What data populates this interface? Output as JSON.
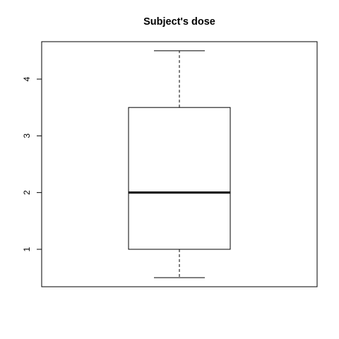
{
  "chart_data": {
    "type": "boxplot",
    "title": "Subject's dose",
    "xlabel": "",
    "ylabel": "",
    "ylim": [
      0.34,
      4.66
    ],
    "y_ticks": [
      1,
      2,
      3,
      4
    ],
    "boxes": [
      {
        "min": 0.5,
        "q1": 1.0,
        "median": 2.0,
        "q3": 3.5,
        "max": 4.5
      }
    ],
    "grid": false,
    "legend": "none"
  }
}
